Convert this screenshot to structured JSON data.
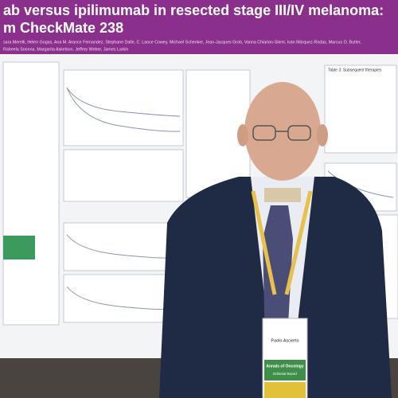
{
  "poster": {
    "title_line1": "ab versus ipilimumab in resected stage III/IV melanoma:",
    "title_line2": "m CheckMate 238",
    "authors_line1": "sara Merelli, Helen Gogas, Ana M. Arance Fernandez, Stephane Dalle, C. Lance Cowey, Michael Schenker, Jean-Jacques Grob, Vanna Chiarion-Sileni, Iván Márquez-Rodas, Marcus O. Butler,",
    "authors_line2": "Raheela Soonna, Margarita Askelson, Jeffrey Weber, James Larkin",
    "section_heading": "Table 3. Subsequent therapies"
  },
  "badge": {
    "name": "Paolo Ascierto",
    "ribbon": "Annals of Oncology",
    "subtitle": "Editorial Board"
  }
}
